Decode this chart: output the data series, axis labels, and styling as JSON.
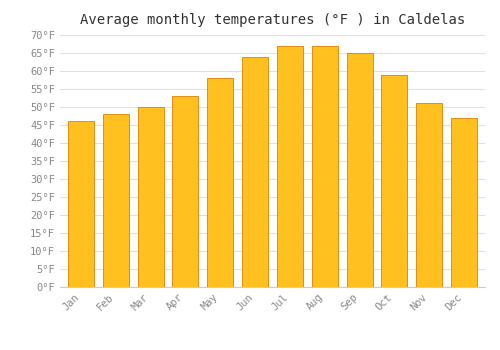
{
  "title": "Average monthly temperatures (°F ) in Caldelas",
  "months": [
    "Jan",
    "Feb",
    "Mar",
    "Apr",
    "May",
    "Jun",
    "Jul",
    "Aug",
    "Sep",
    "Oct",
    "Nov",
    "Dec"
  ],
  "values": [
    46,
    48,
    50,
    53,
    58,
    64,
    67,
    67,
    65,
    59,
    51,
    47
  ],
  "bar_color": "#FFC020",
  "bar_edge_color": "#E08000",
  "ylim": [
    0,
    70
  ],
  "yticks": [
    0,
    5,
    10,
    15,
    20,
    25,
    30,
    35,
    40,
    45,
    50,
    55,
    60,
    65,
    70
  ],
  "ylabel_suffix": "°F",
  "background_color": "#ffffff",
  "grid_color": "#e0e0e0",
  "title_fontsize": 10,
  "tick_fontsize": 7.5,
  "font_family": "monospace"
}
